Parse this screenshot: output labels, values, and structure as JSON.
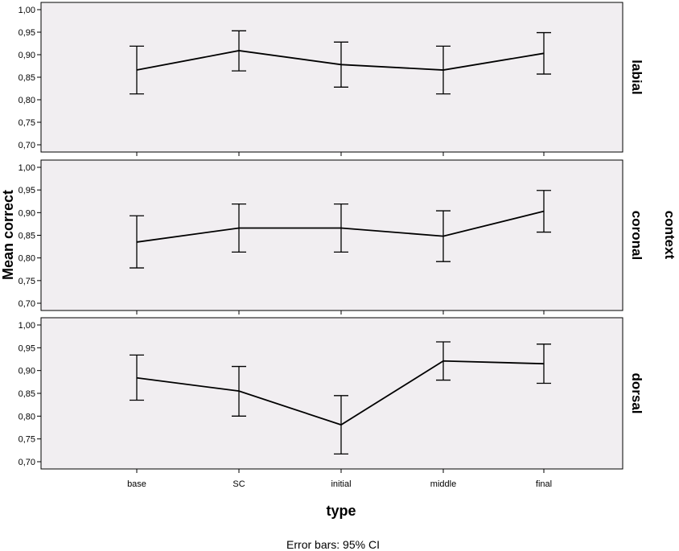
{
  "chart_data": {
    "type": "line",
    "error_bars": "95% CI",
    "footnote": "Error bars: 95% CI",
    "xlabel": "type",
    "ylabel": "Mean correct",
    "facet_title": "context",
    "categories": [
      "base",
      "SC",
      "initial",
      "middle",
      "final"
    ],
    "ylim": [
      0.7,
      1.0
    ],
    "yticks": [
      "0,70",
      "0,75",
      "0,80",
      "0,85",
      "0,90",
      "0,95",
      "1,00"
    ],
    "panel_background": "#f1eef1",
    "line_color": "#000000",
    "panels": [
      {
        "label": "labial",
        "means": [
          0.866,
          0.909,
          0.878,
          0.866,
          0.903
        ],
        "ci_low": [
          0.813,
          0.864,
          0.828,
          0.813,
          0.857
        ],
        "ci_high": [
          0.919,
          0.953,
          0.928,
          0.919,
          0.949
        ]
      },
      {
        "label": "coronal",
        "means": [
          0.835,
          0.866,
          0.866,
          0.848,
          0.903
        ],
        "ci_low": [
          0.778,
          0.813,
          0.813,
          0.792,
          0.857
        ],
        "ci_high": [
          0.893,
          0.919,
          0.919,
          0.904,
          0.949
        ]
      },
      {
        "label": "dorsal",
        "means": [
          0.884,
          0.855,
          0.781,
          0.921,
          0.915
        ],
        "ci_low": [
          0.835,
          0.8,
          0.717,
          0.879,
          0.872
        ],
        "ci_high": [
          0.934,
          0.909,
          0.845,
          0.963,
          0.958
        ]
      }
    ]
  }
}
